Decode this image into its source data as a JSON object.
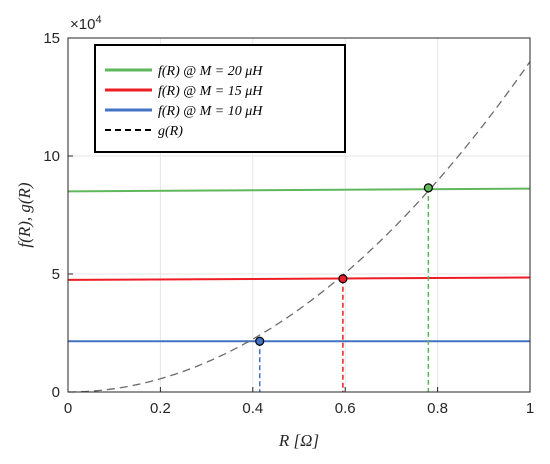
{
  "chart_data": {
    "type": "line",
    "xlabel": "R [Ω]",
    "ylabel": "f(R), g(R)",
    "xlim": [
      0,
      1
    ],
    "ylim": [
      0,
      150000
    ],
    "x_ticks": [
      0,
      0.2,
      0.4,
      0.6,
      0.8,
      1
    ],
    "x_tick_labels": [
      "0",
      "0.2",
      "0.4",
      "0.6",
      "0.8",
      "1"
    ],
    "y_ticks": [
      0,
      50000,
      100000,
      150000
    ],
    "y_tick_labels": [
      "0",
      "5",
      "10",
      "15"
    ],
    "y_exponent_label": "×10",
    "y_exponent_power": "4",
    "grid": true,
    "legend_position": "top-left",
    "series": [
      {
        "name": "f(R) @ M = 20 μH",
        "color": "#5fb85c",
        "style": "solid",
        "x": [
          0,
          1
        ],
        "y": [
          85000,
          86200
        ]
      },
      {
        "name": "f(R) @ M = 15 μH",
        "color": "#ee1c24",
        "style": "solid",
        "x": [
          0,
          1
        ],
        "y": [
          47500,
          48500
        ]
      },
      {
        "name": "f(R) @ M = 10 μH",
        "color": "#4472c4",
        "style": "solid",
        "x": [
          0,
          1
        ],
        "y": [
          21500,
          21500
        ]
      },
      {
        "name": "g(R)",
        "color": "#6b6b6b",
        "style": "dashed",
        "equation": "g(R) = 1.4e5·R²",
        "x": [
          0,
          0.2,
          0.4,
          0.6,
          0.8,
          1
        ],
        "y": [
          0,
          5600,
          22400,
          50400,
          89600,
          140000
        ]
      }
    ],
    "intersections": [
      {
        "x": 0.415,
        "y": 21500,
        "color": "#4472c4"
      },
      {
        "x": 0.595,
        "y": 48000,
        "color": "#ee1c24"
      },
      {
        "x": 0.78,
        "y": 86500,
        "color": "#5fb85c"
      }
    ],
    "legend": {
      "entries": [
        {
          "label": "f(R) @ M = 20 μH",
          "color": "#5fb85c",
          "style": "solid"
        },
        {
          "label": "f(R) @ M = 15 μH",
          "color": "#ee1c24",
          "style": "solid"
        },
        {
          "label": "f(R) @ M = 10 μH",
          "color": "#4472c4",
          "style": "solid"
        },
        {
          "label": "g(R)",
          "color": "#000000",
          "style": "dashed"
        }
      ]
    }
  }
}
